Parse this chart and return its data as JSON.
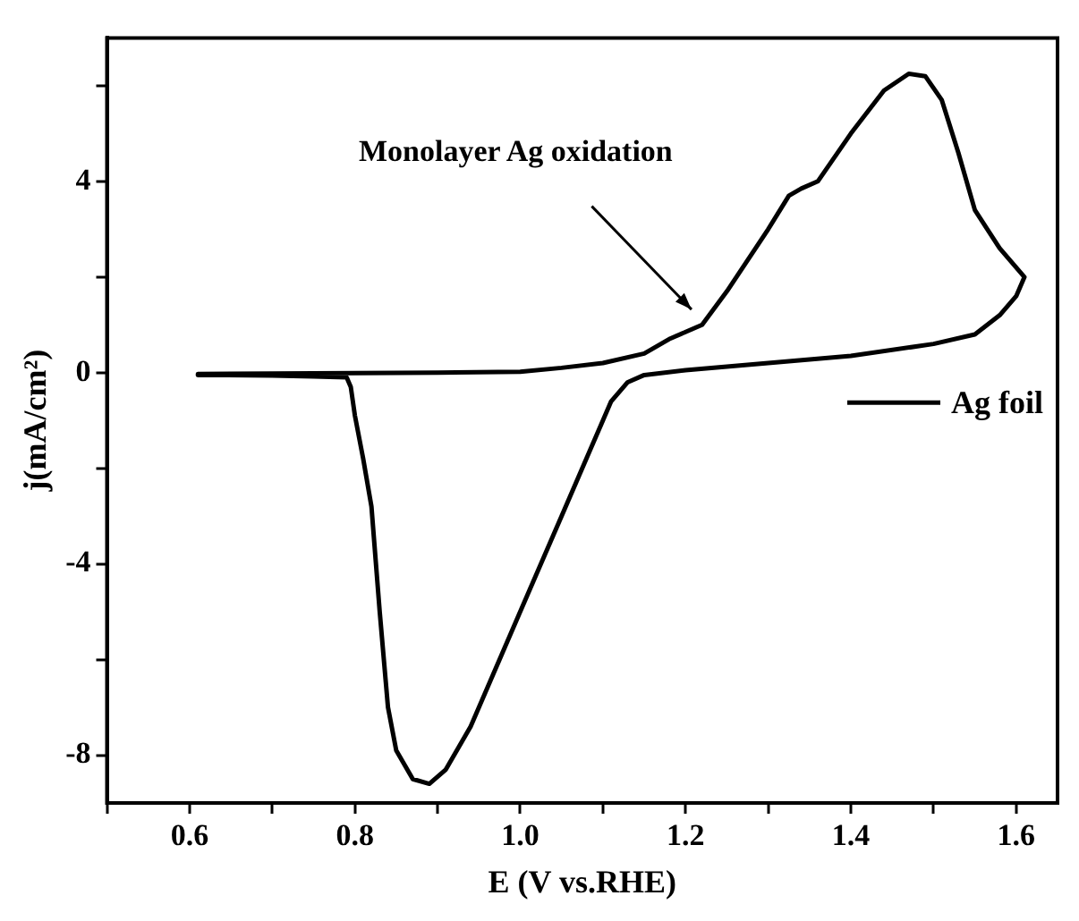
{
  "chart_data": {
    "type": "line",
    "xlabel": "E (V vs.RHE)",
    "ylabel": "j(mA/cm²)",
    "xlim": [
      0.5,
      1.65
    ],
    "ylim": [
      -9,
      7
    ],
    "xticks": [
      {
        "value": 0.5,
        "label": null
      },
      0.6,
      {
        "value": 0.7,
        "label": null
      },
      0.8,
      {
        "value": 0.9,
        "label": null
      },
      {
        "value": 1.0,
        "label": "1.0"
      },
      {
        "value": 1.1,
        "label": null
      },
      1.2,
      {
        "value": 1.3,
        "label": null
      },
      1.4,
      {
        "value": 1.5,
        "label": null
      },
      1.6
    ],
    "yticks": [
      {
        "value": -8,
        "label": "-8"
      },
      {
        "value": -6,
        "label": null
      },
      {
        "value": -4,
        "label": "-4"
      },
      {
        "value": -2,
        "label": null
      },
      0,
      {
        "value": 2,
        "label": null
      },
      4,
      {
        "value": 6,
        "label": null
      }
    ],
    "legend": "right",
    "grid": false,
    "marker": "none",
    "line_style": "solid",
    "annotations": [
      "Monolayer Ag oxidation"
    ],
    "series": [
      {
        "name": "Ag foil",
        "color": "#000000",
        "x": [
          0.61,
          0.7,
          0.8,
          0.9,
          1.0,
          1.05,
          1.1,
          1.15,
          1.18,
          1.2,
          1.22,
          1.25,
          1.3,
          1.325,
          1.34,
          1.36,
          1.4,
          1.44,
          1.47,
          1.49,
          1.51,
          1.53,
          1.55,
          1.58,
          1.61,
          1.6,
          1.58,
          1.55,
          1.5,
          1.4,
          1.3,
          1.2,
          1.15,
          1.13,
          1.11,
          1.1,
          1.08,
          1.05,
          1.02,
          1.0,
          0.97,
          0.94,
          0.91,
          0.89,
          0.87,
          0.85,
          0.84,
          0.83,
          0.82,
          0.81,
          0.8,
          0.795,
          0.79,
          0.75,
          0.7,
          0.61
        ],
        "values": [
          -0.03,
          -0.02,
          -0.01,
          0.0,
          0.02,
          0.1,
          0.2,
          0.4,
          0.7,
          0.85,
          1.0,
          1.7,
          3.0,
          3.7,
          3.85,
          4.0,
          5.0,
          5.9,
          6.25,
          6.2,
          5.7,
          4.6,
          3.4,
          2.6,
          2.0,
          1.6,
          1.2,
          0.8,
          0.6,
          0.35,
          0.2,
          0.05,
          -0.05,
          -0.2,
          -0.6,
          -1.0,
          -1.8,
          -3.0,
          -4.2,
          -5.0,
          -6.2,
          -7.4,
          -8.3,
          -8.6,
          -8.5,
          -7.9,
          -7.0,
          -5.0,
          -2.8,
          -1.8,
          -0.9,
          -0.3,
          -0.1,
          -0.08,
          -0.06,
          -0.05
        ]
      }
    ]
  }
}
